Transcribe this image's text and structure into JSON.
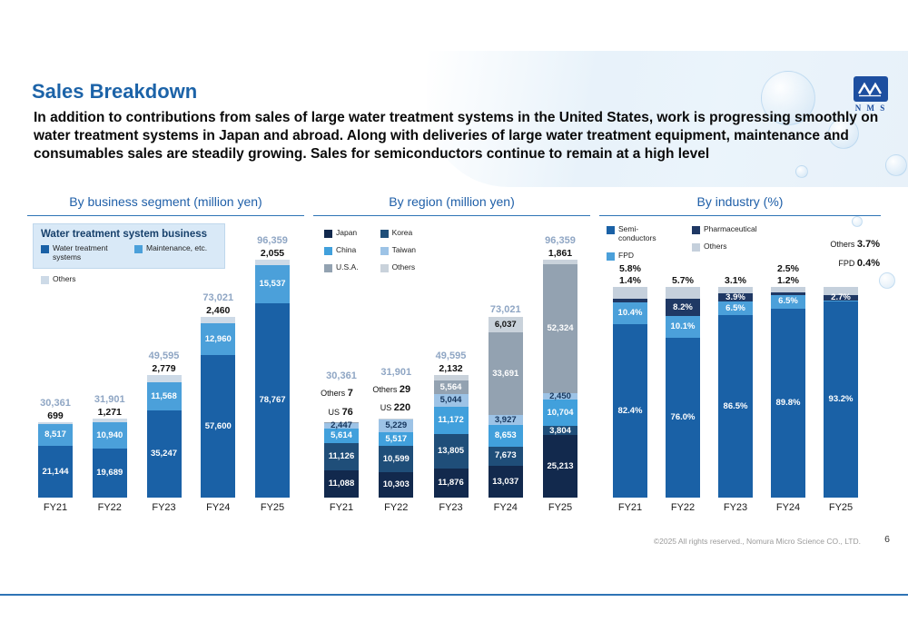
{
  "slide": {
    "title": "Sales Breakdown",
    "summary": "In addition to contributions from sales of large water treatment systems in the United States, work is progressing smoothly on water treatment systems in Japan and abroad. Along with deliveries of large water treatment equipment, maintenance and consumables sales are steadily growing. Sales for semiconductors continue to remain at a high level",
    "logo_text": "N M S",
    "footer": "©2025 All rights reserved., Nomura Micro Science CO., LTD.",
    "page_number": "6"
  },
  "colors": {
    "accent_blue": "#2E74B5",
    "title_blue": "#1C63A8",
    "total_label_blue": "#8FA6C4"
  },
  "chart_data": [
    {
      "type": "bar",
      "stacked": true,
      "title": "By business segment (million yen)",
      "categories": [
        "FY21",
        "FY22",
        "FY23",
        "FY24",
        "FY25"
      ],
      "ymax": 100000,
      "totals": [
        "30,361",
        "31,901",
        "49,595",
        "73,021",
        "96,359"
      ],
      "legend": {
        "panel_title": "Water treatment system business",
        "panel_items": [
          {
            "label": "Water treatment systems",
            "color": "#1A61A6"
          },
          {
            "label": "Maintenance, etc.",
            "color": "#4BA0DA"
          }
        ],
        "below_items": [
          {
            "label": "Others",
            "color": "#CDDAE7"
          }
        ]
      },
      "series": [
        {
          "name": "Water treatment systems",
          "color": "#1A61A6",
          "label_color": "#FFFFFF",
          "values": [
            21144,
            19689,
            35247,
            57600,
            78767
          ],
          "labels": [
            "21,144",
            "19,689",
            "35,247",
            "57,600",
            "78,767"
          ],
          "label_pos": [
            "in",
            "in",
            "in",
            "in",
            "in"
          ]
        },
        {
          "name": "Maintenance, etc.",
          "color": "#4BA0DA",
          "label_color": "#FFFFFF",
          "values": [
            8517,
            10940,
            11568,
            12960,
            15537
          ],
          "labels": [
            "8,517",
            "10,940",
            "11,568",
            "12,960",
            "15,537"
          ],
          "label_pos": [
            "in",
            "in",
            "in",
            "in",
            "in"
          ]
        },
        {
          "name": "Others",
          "color": "#CDDAE7",
          "label_color": "#111111",
          "values": [
            699,
            1271,
            2779,
            2460,
            2055
          ],
          "labels": [
            "699",
            "1,271",
            "2,779",
            "2,460",
            "2,055"
          ],
          "label_pos": [
            "above",
            "above",
            "above",
            "above",
            "above"
          ]
        }
      ]
    },
    {
      "type": "bar",
      "stacked": true,
      "title": "By region (million yen)",
      "categories": [
        "FY21",
        "FY22",
        "FY23",
        "FY24",
        "FY25"
      ],
      "ymax": 100000,
      "totals": [
        "30,361",
        "31,901",
        "49,595",
        "73,021",
        "96,359"
      ],
      "legend": {
        "columns": [
          [
            {
              "label": "Japan",
              "color": "#12294D"
            },
            {
              "label": "China",
              "color": "#41A0DC"
            },
            {
              "label": "U.S.A.",
              "color": "#93A2B1"
            }
          ],
          [
            {
              "label": "Korea",
              "color": "#1F4E79"
            },
            {
              "label": "Taiwan",
              "color": "#9DC3E6"
            },
            {
              "label": "Others",
              "color": "#C9D2DB"
            }
          ]
        ]
      },
      "series": [
        {
          "name": "Japan",
          "color": "#12294D",
          "label_color": "#FFFFFF",
          "values": [
            11088,
            10303,
            11876,
            13037,
            25213
          ],
          "labels": [
            "11,088",
            "10,303",
            "11,876",
            "13,037",
            "25,213"
          ],
          "label_pos": [
            "in",
            "in",
            "in",
            "in",
            "in"
          ]
        },
        {
          "name": "Korea",
          "color": "#1F4E79",
          "label_color": "#FFFFFF",
          "values": [
            11126,
            10599,
            13805,
            7673,
            3804
          ],
          "labels": [
            "11,126",
            "10,599",
            "13,805",
            "7,673",
            "3,804"
          ],
          "label_pos": [
            "in",
            "in",
            "in",
            "in",
            "in"
          ]
        },
        {
          "name": "China",
          "color": "#41A0DC",
          "label_color": "#FFFFFF",
          "values": [
            5614,
            5517,
            11172,
            8653,
            10704
          ],
          "labels": [
            "5,614",
            "5,517",
            "11,172",
            "8,653",
            "10,704"
          ],
          "label_pos": [
            "in",
            "in",
            "in",
            "in",
            "in"
          ]
        },
        {
          "name": "Taiwan",
          "color": "#9DC3E6",
          "label_color": "#15355C",
          "values": [
            2447,
            5229,
            5044,
            3927,
            2450
          ],
          "labels": [
            "2,447",
            "5,229",
            "5,044",
            "3,927",
            "2,450"
          ],
          "label_pos": [
            "in",
            "in",
            "in",
            "in",
            "in"
          ]
        },
        {
          "name": "U.S.A.",
          "color": "#93A2B1",
          "label_color": "#FFFFFF",
          "values": [
            76,
            220,
            5564,
            33691,
            52324
          ],
          "labels": [
            "76",
            "220",
            "5,564",
            "33,691",
            "52,324"
          ],
          "label_pos": [
            "none",
            "none",
            "in",
            "in",
            "in"
          ]
        },
        {
          "name": "Others",
          "color": "#C9D2DB",
          "label_color": "#111111",
          "values": [
            7,
            29,
            2132,
            6037,
            1861
          ],
          "labels": [
            "7",
            "29",
            "2,132",
            "6,037",
            "1,861"
          ],
          "label_pos": [
            "none",
            "none",
            "above",
            "in",
            "above"
          ]
        }
      ],
      "annotations": [
        {
          "category_index": 0,
          "anchor": "stack-above",
          "lines": [
            {
              "text": "Others",
              "value": "7"
            },
            {
              "text": "US",
              "value": "76"
            }
          ]
        },
        {
          "category_index": 1,
          "anchor": "stack-above",
          "lines": [
            {
              "text": "Others",
              "value": "29"
            },
            {
              "text": "US",
              "value": "220"
            }
          ]
        }
      ]
    },
    {
      "type": "bar",
      "stacked": true,
      "title": "By industry (%)",
      "categories": [
        "FY21",
        "FY22",
        "FY23",
        "FY24",
        "FY25"
      ],
      "ymax": 100,
      "legend": {
        "columns": [
          [
            {
              "label": "Semi-conductors",
              "color": "#1A61A6"
            },
            {
              "label": "FPD",
              "color": "#4BA0DA"
            }
          ],
          [
            {
              "label": "Pharmaceutical",
              "color": "#1F3864"
            },
            {
              "label": "Others",
              "color": "#C5D0DC"
            }
          ]
        ]
      },
      "series": [
        {
          "name": "Semiconductors",
          "color": "#1A61A6",
          "label_color": "#FFFFFF",
          "values": [
            82.4,
            76.0,
            86.5,
            89.8,
            93.2
          ],
          "labels": [
            "82.4%",
            "76.0%",
            "86.5%",
            "89.8%",
            "93.2%"
          ],
          "label_pos": [
            "in",
            "in",
            "in",
            "in",
            "in"
          ]
        },
        {
          "name": "FPD",
          "color": "#4BA0DA",
          "label_color": "#FFFFFF",
          "values": [
            10.4,
            10.1,
            6.5,
            6.5,
            0.4
          ],
          "labels": [
            "10.4%",
            "10.1%",
            "6.5%",
            "6.5%",
            "0.4%"
          ],
          "label_pos": [
            "in",
            "in",
            "in",
            "in",
            "none"
          ]
        },
        {
          "name": "Pharmaceutical",
          "color": "#1F3864",
          "label_color": "#FFFFFF",
          "values": [
            1.4,
            8.2,
            3.9,
            1.2,
            2.7
          ],
          "labels": [
            "1.4%",
            "8.2%",
            "3.9%",
            "1.2%",
            "2.7%"
          ],
          "label_pos": [
            "above",
            "in",
            "in",
            "above",
            "in"
          ]
        },
        {
          "name": "Others",
          "color": "#C5D0DC",
          "label_color": "#111111",
          "values": [
            5.8,
            5.7,
            3.1,
            2.5,
            3.7
          ],
          "labels": [
            "5.8%",
            "5.7%",
            "3.1%",
            "2.5%",
            "3.7%"
          ],
          "label_pos": [
            "above",
            "above",
            "above",
            "above",
            "none"
          ]
        }
      ],
      "annotations": [
        {
          "category_index": 4,
          "anchor": "above-right",
          "lines": [
            {
              "text": "Others",
              "value": "3.7%"
            },
            {
              "text": "FPD",
              "value": "0.4%"
            }
          ]
        }
      ]
    }
  ]
}
